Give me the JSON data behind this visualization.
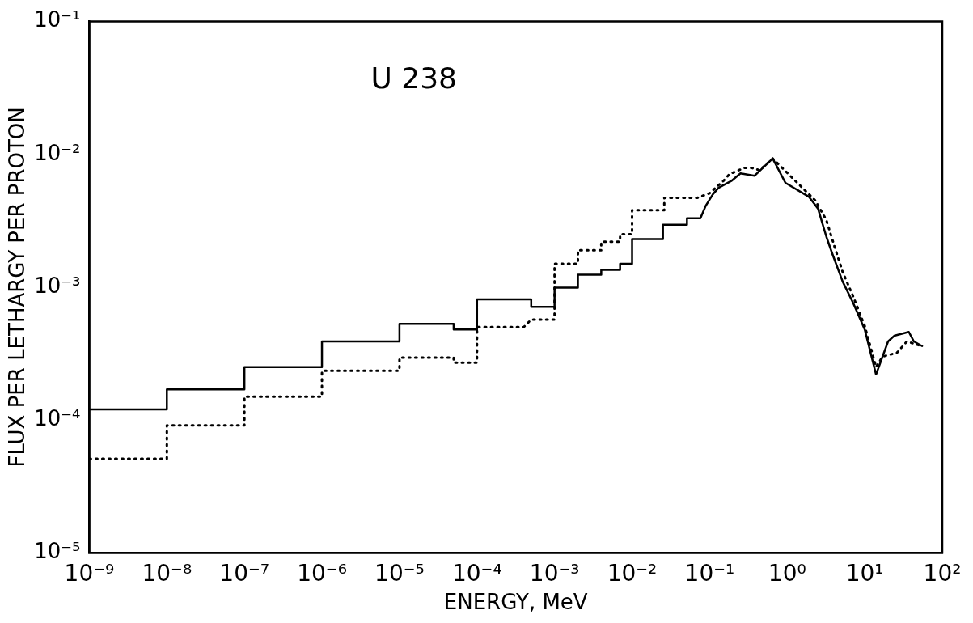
{
  "chart_data": {
    "type": "line",
    "title": "U 238",
    "xlabel": "ENERGY, MeV",
    "ylabel": "FLUX PER LETHARGY PER PROTON",
    "log": "xy",
    "grid": false,
    "legend": false,
    "marker": "none",
    "xlim": [
      1e-09,
      100
    ],
    "xticks": [
      {
        "value": 1e-09,
        "label": "10⁻⁹"
      },
      {
        "value": 1e-08,
        "label": "10⁻⁸"
      },
      {
        "value": 1e-07,
        "label": "10⁻⁷"
      },
      {
        "value": 1e-06,
        "label": "10⁻⁶"
      },
      {
        "value": 1e-05,
        "label": "10⁻⁵"
      },
      {
        "value": 0.0001,
        "label": "10⁻⁴"
      },
      {
        "value": 0.001,
        "label": "10⁻³"
      },
      {
        "value": 0.01,
        "label": "10⁻²"
      },
      {
        "value": 0.1,
        "label": "10⁻¹"
      },
      {
        "value": 1,
        "label": "10⁰"
      },
      {
        "value": 10,
        "label": "10¹"
      },
      {
        "value": 100,
        "label": "10²"
      }
    ],
    "ylim": [
      1e-05,
      0.1
    ],
    "yticks": [
      {
        "value": 1e-05,
        "label": "10⁻⁵"
      },
      {
        "value": 0.0001,
        "label": "10⁻⁴"
      },
      {
        "value": 0.001,
        "label": "10⁻³"
      },
      {
        "value": 0.01,
        "label": "10⁻²"
      },
      {
        "value": 0.1,
        "label": "10⁻¹"
      }
    ],
    "series": [
      {
        "color": "#000000",
        "line_style": "solid",
        "x": [
          1e-09,
          1e-08,
          1e-08,
          1e-07,
          1e-07,
          1e-06,
          1e-06,
          1e-05,
          1e-05,
          5e-05,
          5e-05,
          0.0001,
          0.0001,
          0.0005,
          0.0005,
          0.001,
          0.001,
          0.002,
          0.002,
          0.004,
          0.004,
          0.007,
          0.007,
          0.01,
          0.01,
          0.025,
          0.025,
          0.051,
          0.051,
          0.076,
          0.089,
          0.11,
          0.13,
          0.19,
          0.25,
          0.38,
          0.65,
          0.95,
          1.9,
          2.5,
          3.2,
          3.8,
          5.2,
          7.1,
          10,
          14,
          20,
          24,
          37,
          43,
          55
        ],
        "values": [
          0.00012,
          0.00012,
          0.00017,
          0.00017,
          0.00025,
          0.00025,
          0.00039,
          0.00039,
          0.00053,
          0.00053,
          0.00048,
          0.00048,
          0.00081,
          0.00081,
          0.00071,
          0.00071,
          0.00099,
          0.00099,
          0.00124,
          0.00124,
          0.00135,
          0.00135,
          0.0015,
          0.0015,
          0.0023,
          0.0023,
          0.00295,
          0.00295,
          0.0033,
          0.0033,
          0.0041,
          0.005,
          0.0056,
          0.0063,
          0.0072,
          0.0069,
          0.0093,
          0.0061,
          0.0048,
          0.0039,
          0.0024,
          0.0018,
          0.0011,
          0.00076,
          0.00048,
          0.00022,
          0.00039,
          0.00043,
          0.00046,
          0.00039,
          0.00036
        ]
      },
      {
        "color": "#000000",
        "line_style": "dotted",
        "x": [
          1e-09,
          1e-08,
          1e-08,
          1e-07,
          1e-07,
          1e-06,
          1e-06,
          1e-05,
          1e-05,
          5e-05,
          5e-05,
          0.0001,
          0.0001,
          0.0004,
          0.0005,
          0.001,
          0.001,
          0.002,
          0.002,
          0.004,
          0.004,
          0.007,
          0.007,
          0.01,
          0.01,
          0.026,
          0.026,
          0.069,
          0.1,
          0.15,
          0.18,
          0.28,
          0.35,
          0.44,
          0.65,
          2.3,
          3.2,
          4.1,
          5.2,
          7.1,
          10,
          14,
          17,
          26,
          35,
          54
        ],
        "values": [
          5.1e-05,
          5.1e-05,
          9.1e-05,
          9.1e-05,
          0.00015,
          0.00015,
          0.000235,
          0.000235,
          0.000295,
          0.000295,
          0.00027,
          0.00027,
          0.0005,
          0.0005,
          0.00057,
          0.00057,
          0.0015,
          0.0015,
          0.0019,
          0.0019,
          0.0022,
          0.0022,
          0.0025,
          0.0025,
          0.0038,
          0.0038,
          0.0047,
          0.0047,
          0.0051,
          0.0063,
          0.0071,
          0.0079,
          0.0079,
          0.0076,
          0.0093,
          0.0045,
          0.0032,
          0.002,
          0.0013,
          0.00085,
          0.00051,
          0.00025,
          0.0003,
          0.00032,
          0.00039,
          0.00036
        ]
      }
    ]
  }
}
